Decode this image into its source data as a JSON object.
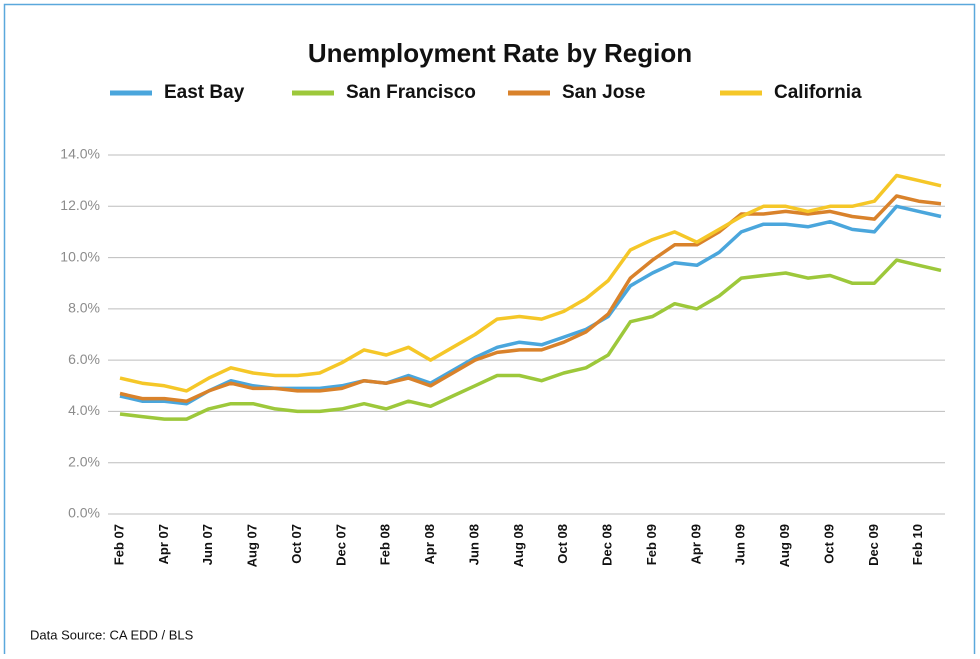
{
  "chart_data": {
    "type": "line",
    "title": "Unemployment Rate by Region",
    "source": "Data Source: CA EDD / BLS",
    "categories": [
      "Feb 07",
      null,
      "Apr 07",
      null,
      "Jun 07",
      null,
      "Aug 07",
      null,
      "Oct 07",
      null,
      "Dec 07",
      null,
      "Feb 08",
      null,
      "Apr 08",
      null,
      "Jun 08",
      null,
      "Aug 08",
      null,
      "Oct 08",
      null,
      "Dec 08",
      null,
      "Feb 09",
      null,
      "Apr 09",
      null,
      "Jun 09",
      null,
      "Aug 09",
      null,
      "Oct 09",
      null,
      "Dec 09",
      null,
      "Feb 10",
      null
    ],
    "series": [
      {
        "name": "East Bay",
        "color": "#4aa6dc",
        "values": [
          4.6,
          4.4,
          4.4,
          4.3,
          4.8,
          5.2,
          5.0,
          4.9,
          4.9,
          4.9,
          5.0,
          5.2,
          5.1,
          5.4,
          5.1,
          5.6,
          6.1,
          6.5,
          6.7,
          6.6,
          6.9,
          7.2,
          7.7,
          8.9,
          9.4,
          9.8,
          9.7,
          10.2,
          11.0,
          11.3,
          11.3,
          11.2,
          11.4,
          11.1,
          11.0,
          12.0,
          11.8,
          11.6
        ]
      },
      {
        "name": "San Francisco",
        "color": "#9dc83b",
        "values": [
          3.9,
          3.8,
          3.7,
          3.7,
          4.1,
          4.3,
          4.3,
          4.1,
          4.0,
          4.0,
          4.1,
          4.3,
          4.1,
          4.4,
          4.2,
          4.6,
          5.0,
          5.4,
          5.4,
          5.2,
          5.5,
          5.7,
          6.2,
          7.5,
          7.7,
          8.2,
          8.0,
          8.5,
          9.2,
          9.3,
          9.4,
          9.2,
          9.3,
          9.0,
          9.0,
          9.9,
          9.7,
          9.5
        ]
      },
      {
        "name": "San Jose",
        "color": "#d9822b",
        "values": [
          4.7,
          4.5,
          4.5,
          4.4,
          4.8,
          5.1,
          4.9,
          4.9,
          4.8,
          4.8,
          4.9,
          5.2,
          5.1,
          5.3,
          5.0,
          5.5,
          6.0,
          6.3,
          6.4,
          6.4,
          6.7,
          7.1,
          7.8,
          9.2,
          9.9,
          10.5,
          10.5,
          11.0,
          11.7,
          11.7,
          11.8,
          11.7,
          11.8,
          11.6,
          11.5,
          12.4,
          12.2,
          12.1
        ]
      },
      {
        "name": "California",
        "color": "#f5c728",
        "values": [
          5.3,
          5.1,
          5.0,
          4.8,
          5.3,
          5.7,
          5.5,
          5.4,
          5.4,
          5.5,
          5.9,
          6.4,
          6.2,
          6.5,
          6.0,
          6.5,
          7.0,
          7.6,
          7.7,
          7.6,
          7.9,
          8.4,
          9.1,
          10.3,
          10.7,
          11.0,
          10.6,
          11.1,
          11.6,
          12.0,
          12.0,
          11.8,
          12.0,
          12.0,
          12.2,
          13.2,
          13.0,
          12.8
        ]
      }
    ],
    "ylim": [
      0,
      14
    ],
    "yticks": [
      {
        "value": 0,
        "label": "0.0%"
      },
      {
        "value": 2,
        "label": "2.0%"
      },
      {
        "value": 4,
        "label": "4.0%"
      },
      {
        "value": 6,
        "label": "6.0%"
      },
      {
        "value": 8,
        "label": "8.0%"
      },
      {
        "value": 10,
        "label": "10.0%"
      },
      {
        "value": 12,
        "label": "12.0%"
      },
      {
        "value": 14,
        "label": "14.0%"
      }
    ],
    "grid": true
  }
}
